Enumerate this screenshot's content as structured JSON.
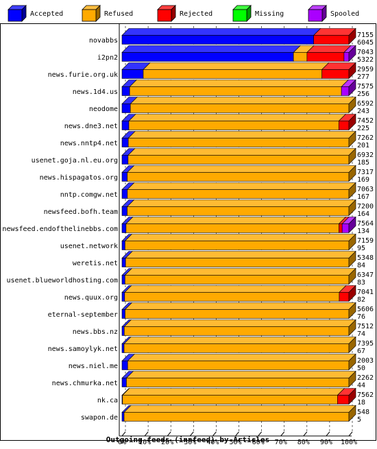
{
  "chart_data": {
    "type": "bar",
    "orientation": "horizontal",
    "stacked": true,
    "three_d": true,
    "title": "Outgoing feeds (innfeed) by Articles",
    "xlabel": "",
    "ylabel": "",
    "xlim": [
      0,
      100
    ],
    "x_ticks": [
      "0%",
      "10%",
      "20%",
      "30%",
      "40%",
      "50%",
      "60%",
      "70%",
      "80%",
      "90%",
      "100%"
    ],
    "grid": "vertical-dashed",
    "legend_position": "top",
    "legend": [
      {
        "name": "Accepted",
        "color": "#0000ff"
      },
      {
        "name": "Refused",
        "color": "#ffaa00"
      },
      {
        "name": "Rejected",
        "color": "#ff0000"
      },
      {
        "name": "Missing",
        "color": "#00ff00"
      },
      {
        "name": "Spooled",
        "color": "#aa00ff"
      }
    ],
    "rows": [
      {
        "name": "novabbs",
        "offered": "7155",
        "accepted_count": "6045",
        "accepted": 6045,
        "refused": 0,
        "rejected": 1110,
        "missing": 0,
        "spooled": 0
      },
      {
        "name": "i2pn2",
        "offered": "7043",
        "accepted_count": "5322",
        "accepted": 5322,
        "refused": 420,
        "rejected": 1150,
        "missing": 0,
        "spooled": 151
      },
      {
        "name": "news.furie.org.uk",
        "offered": "2959",
        "accepted_count": "277",
        "accepted": 277,
        "refused": 2330,
        "rejected": 352,
        "missing": 0,
        "spooled": 0
      },
      {
        "name": "news.1d4.us",
        "offered": "7575",
        "accepted_count": "256",
        "accepted": 256,
        "refused": 7070,
        "rejected": 0,
        "missing": 0,
        "spooled": 249
      },
      {
        "name": "neodome",
        "offered": "6592",
        "accepted_count": "243",
        "accepted": 243,
        "refused": 6349,
        "rejected": 0,
        "missing": 0,
        "spooled": 0
      },
      {
        "name": "news.dne3.net",
        "offered": "7452",
        "accepted_count": "225",
        "accepted": 225,
        "refused": 6895,
        "rejected": 332,
        "missing": 0,
        "spooled": 0
      },
      {
        "name": "news.nntp4.net",
        "offered": "7262",
        "accepted_count": "201",
        "accepted": 201,
        "refused": 7061,
        "rejected": 0,
        "missing": 0,
        "spooled": 0
      },
      {
        "name": "usenet.goja.nl.eu.org",
        "offered": "6932",
        "accepted_count": "185",
        "accepted": 185,
        "refused": 6747,
        "rejected": 0,
        "missing": 0,
        "spooled": 0
      },
      {
        "name": "news.hispagatos.org",
        "offered": "7317",
        "accepted_count": "169",
        "accepted": 169,
        "refused": 7148,
        "rejected": 0,
        "missing": 0,
        "spooled": 0
      },
      {
        "name": "nntp.comgw.net",
        "offered": "7063",
        "accepted_count": "167",
        "accepted": 167,
        "refused": 6896,
        "rejected": 0,
        "missing": 0,
        "spooled": 0
      },
      {
        "name": "newsfeed.bofh.team",
        "offered": "7200",
        "accepted_count": "164",
        "accepted": 164,
        "refused": 7036,
        "rejected": 0,
        "missing": 0,
        "spooled": 0
      },
      {
        "name": "newsfeed.endofthelinebbs.com",
        "offered": "7564",
        "accepted_count": "134",
        "accepted": 134,
        "refused": 7096,
        "rejected": 110,
        "missing": 0,
        "spooled": 224
      },
      {
        "name": "usenet.network",
        "offered": "7159",
        "accepted_count": "95",
        "accepted": 95,
        "refused": 7064,
        "rejected": 0,
        "missing": 0,
        "spooled": 0
      },
      {
        "name": "weretis.net",
        "offered": "5348",
        "accepted_count": "84",
        "accepted": 84,
        "refused": 5264,
        "rejected": 0,
        "missing": 0,
        "spooled": 0
      },
      {
        "name": "usenet.blueworldhosting.com",
        "offered": "6347",
        "accepted_count": "83",
        "accepted": 83,
        "refused": 6264,
        "rejected": 0,
        "missing": 0,
        "spooled": 0
      },
      {
        "name": "news.quux.org",
        "offered": "7041",
        "accepted_count": "82",
        "accepted": 82,
        "refused": 6659,
        "rejected": 300,
        "missing": 0,
        "spooled": 0
      },
      {
        "name": "eternal-september",
        "offered": "5606",
        "accepted_count": "76",
        "accepted": 76,
        "refused": 5530,
        "rejected": 0,
        "missing": 0,
        "spooled": 0
      },
      {
        "name": "news.bbs.nz",
        "offered": "7512",
        "accepted_count": "74",
        "accepted": 74,
        "refused": 7438,
        "rejected": 0,
        "missing": 0,
        "spooled": 0
      },
      {
        "name": "news.samoylyk.net",
        "offered": "7395",
        "accepted_count": "67",
        "accepted": 67,
        "refused": 7328,
        "rejected": 0,
        "missing": 0,
        "spooled": 0
      },
      {
        "name": "news.niel.me",
        "offered": "2003",
        "accepted_count": "50",
        "accepted": 50,
        "refused": 1953,
        "rejected": 0,
        "missing": 0,
        "spooled": 0
      },
      {
        "name": "news.chmurka.net",
        "offered": "2262",
        "accepted_count": "44",
        "accepted": 44,
        "refused": 2218,
        "rejected": 0,
        "missing": 0,
        "spooled": 0
      },
      {
        "name": "nk.ca",
        "offered": "7562",
        "accepted_count": "18",
        "accepted": 18,
        "refused": 7164,
        "rejected": 380,
        "missing": 0,
        "spooled": 0
      },
      {
        "name": "swapon.de",
        "offered": "548",
        "accepted_count": "5",
        "accepted": 5,
        "refused": 543,
        "rejected": 0,
        "missing": 0,
        "spooled": 0
      }
    ]
  }
}
